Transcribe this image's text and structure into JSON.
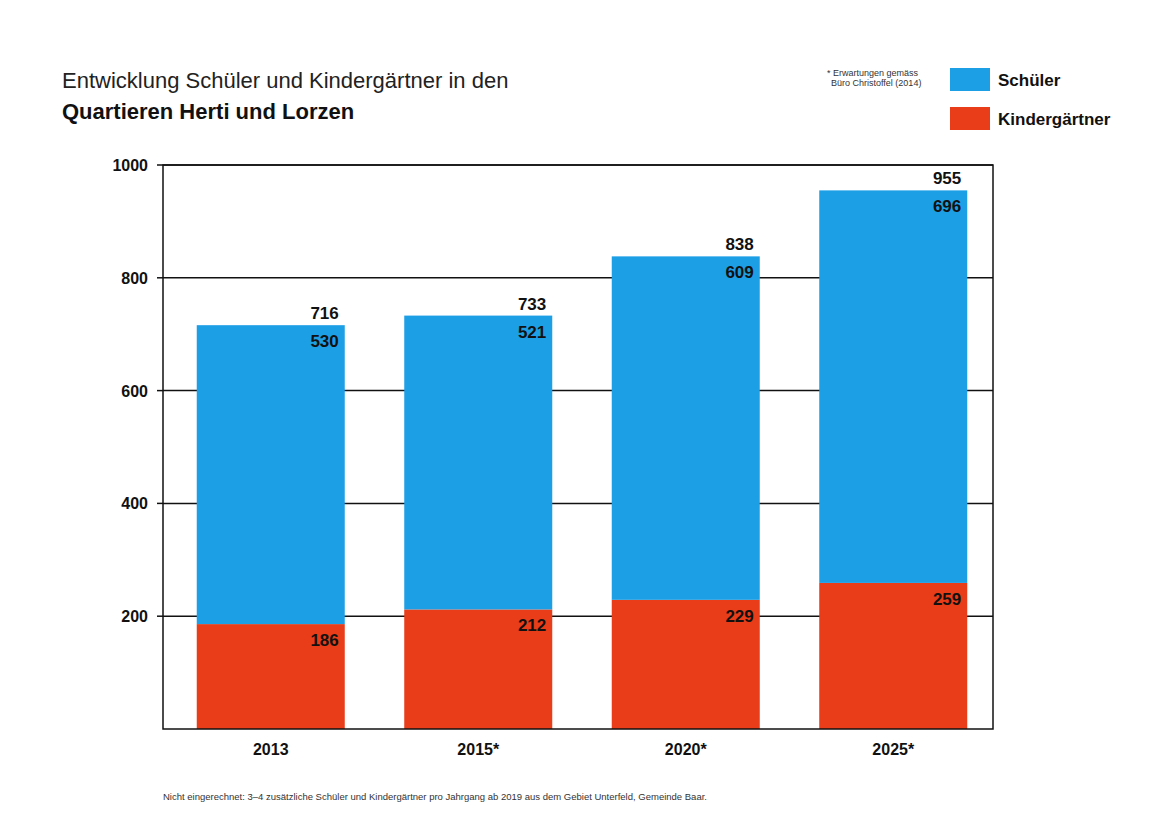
{
  "chart_data": {
    "type": "bar",
    "title": "Entwicklung Schüler und Kindergärtner in den",
    "subtitle": "Quartieren Herti und Lorzen",
    "note": [
      "* Erwartungen gemäss",
      "Büro Christoffel (2014)"
    ],
    "footnote": "Nicht eingerechnet: 3–4 zusätzliche Schüler und Kindergärtner pro Jahrgang ab 2019 aus dem Gebiet Unterfeld, Gemeinde Baar.",
    "categories": [
      "2013",
      "2015*",
      "2020*",
      "2025*"
    ],
    "series": [
      {
        "name": "Kindergärtner",
        "color": "#e83d18",
        "values": [
          186,
          212,
          229,
          259
        ]
      },
      {
        "name": "Schüler",
        "color": "#1d9fe6",
        "values": [
          530,
          521,
          609,
          696
        ]
      }
    ],
    "totals": [
      716,
      733,
      838,
      955
    ],
    "stacked": true,
    "data_labels": true,
    "grid": true,
    "legend": "top-right",
    "ylim": [
      0,
      1000
    ],
    "yticks": [
      200,
      400,
      600,
      800,
      1000
    ]
  }
}
